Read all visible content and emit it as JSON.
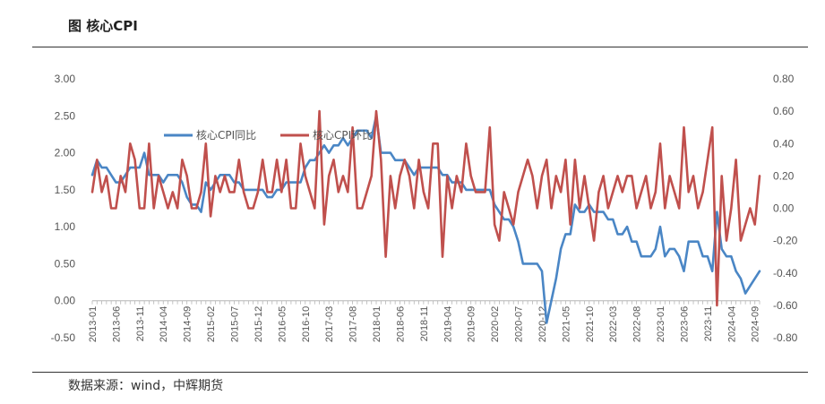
{
  "header": {
    "title": "图  核心CPI"
  },
  "footer": {
    "source": "数据来源：wind，中辉期货"
  },
  "chart_data": {
    "type": "line",
    "title": "",
    "left_axis": {
      "min": -0.5,
      "max": 3.0,
      "step": 0.5,
      "ticks": [
        "3.00",
        "2.50",
        "2.00",
        "1.50",
        "1.00",
        "0.50",
        "0.00",
        "-0.50"
      ]
    },
    "right_axis": {
      "min": -0.8,
      "max": 0.8,
      "step": 0.2,
      "ticks": [
        "0.80",
        "0.60",
        "0.40",
        "0.20",
        "0.00",
        "-0.20",
        "-0.40",
        "-0.60",
        "-0.80"
      ]
    },
    "x_ticks": [
      "2013-01",
      "2013-06",
      "2013-11",
      "2014-04",
      "2014-09",
      "2015-02",
      "2015-07",
      "2015-12",
      "2016-05",
      "2016-10",
      "2017-03",
      "2017-08",
      "2018-01",
      "2018-06",
      "2018-11",
      "2019-04",
      "2019-09",
      "2020-02",
      "2020-07",
      "2020-12",
      "2021-05",
      "2021-10",
      "2022-03",
      "2022-08",
      "2023-01",
      "2023-06",
      "2023-11",
      "2024-04",
      "2024-09"
    ],
    "start": "2013-01",
    "legend_position": "top-center",
    "series": [
      {
        "name": "核心CPI同比",
        "axis": "left",
        "color": "#4a86c5",
        "values": [
          1.7,
          1.9,
          1.8,
          1.8,
          1.7,
          1.6,
          1.6,
          1.7,
          1.8,
          1.8,
          1.8,
          2.0,
          1.7,
          1.7,
          1.7,
          1.6,
          1.7,
          1.7,
          1.7,
          1.6,
          1.4,
          1.3,
          1.3,
          1.2,
          1.6,
          1.5,
          1.6,
          1.7,
          1.7,
          1.7,
          1.6,
          1.6,
          1.5,
          1.5,
          1.5,
          1.5,
          1.5,
          1.4,
          1.4,
          1.5,
          1.5,
          1.6,
          1.6,
          1.6,
          1.6,
          1.8,
          1.9,
          1.9,
          2.0,
          2.1,
          2.0,
          2.1,
          2.1,
          2.2,
          2.1,
          2.2,
          2.3,
          2.3,
          2.3,
          2.2,
          2.5,
          2.0,
          2.0,
          2.0,
          1.9,
          1.9,
          1.9,
          1.8,
          1.7,
          1.8,
          1.8,
          1.8,
          1.8,
          1.8,
          1.7,
          1.7,
          1.6,
          1.6,
          1.6,
          1.5,
          1.5,
          1.5,
          1.5,
          1.5,
          1.5,
          1.3,
          1.2,
          1.1,
          1.1,
          1.0,
          0.8,
          0.5,
          0.5,
          0.5,
          0.5,
          0.4,
          -0.3,
          0.0,
          0.3,
          0.7,
          0.9,
          0.9,
          1.3,
          1.2,
          1.2,
          1.3,
          1.2,
          1.2,
          1.2,
          1.1,
          1.1,
          0.9,
          0.9,
          1.0,
          0.8,
          0.8,
          0.6,
          0.6,
          0.6,
          0.7,
          1.0,
          0.6,
          0.7,
          0.7,
          0.6,
          0.4,
          0.8,
          0.8,
          0.8,
          0.6,
          0.6,
          0.4,
          1.2,
          0.7,
          0.6,
          0.6,
          0.4,
          0.3,
          0.1,
          0.2,
          0.3,
          0.4
        ]
      },
      {
        "name": "核心CPI环比",
        "axis": "right",
        "color": "#c0504d",
        "values": [
          0.1,
          0.3,
          0.1,
          0.2,
          0.0,
          0.0,
          0.2,
          0.1,
          0.4,
          0.3,
          0.0,
          0.0,
          0.4,
          0.0,
          0.2,
          0.1,
          0.0,
          0.1,
          0.0,
          0.3,
          0.2,
          0.0,
          0.0,
          0.1,
          0.4,
          -0.05,
          0.2,
          0.1,
          0.2,
          0.1,
          0.1,
          0.3,
          0.1,
          0.0,
          0.0,
          0.1,
          0.3,
          0.1,
          0.1,
          0.3,
          0.1,
          0.3,
          0.0,
          0.0,
          0.4,
          0.2,
          0.1,
          0.0,
          0.6,
          -0.1,
          0.2,
          0.3,
          0.1,
          0.2,
          0.1,
          0.5,
          0.0,
          0.0,
          0.1,
          0.2,
          0.6,
          0.3,
          -0.3,
          0.2,
          0.0,
          0.2,
          0.3,
          0.2,
          0.0,
          0.3,
          0.1,
          0.0,
          0.4,
          0.4,
          -0.3,
          0.2,
          0.0,
          0.2,
          0.1,
          0.4,
          0.2,
          0.1,
          0.1,
          0.1,
          0.5,
          -0.1,
          -0.2,
          0.1,
          0.0,
          -0.1,
          0.1,
          0.2,
          0.3,
          0.2,
          0.0,
          0.2,
          0.3,
          0.0,
          0.2,
          0.1,
          0.3,
          -0.1,
          0.3,
          0.0,
          0.2,
          0.0,
          -0.2,
          0.1,
          0.2,
          0.0,
          0.1,
          0.2,
          0.1,
          0.2,
          0.2,
          0.0,
          0.1,
          0.2,
          0.0,
          0.1,
          0.4,
          0.0,
          0.2,
          0.1,
          0.0,
          0.5,
          0.1,
          0.2,
          0.0,
          0.1,
          0.3,
          0.5,
          -0.6,
          0.2,
          -0.2,
          0.0,
          0.3,
          -0.2,
          -0.1,
          0.0,
          -0.1,
          0.2
        ]
      }
    ]
  }
}
